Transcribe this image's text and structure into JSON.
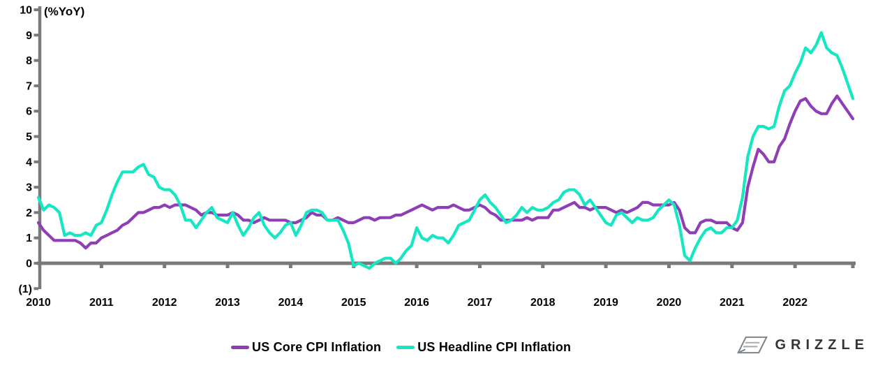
{
  "chart_data": {
    "type": "line",
    "title": "",
    "unit_label": "(%YoY)",
    "x_start": "2010-01",
    "x_end": "2022-12",
    "x_frequency": "monthly",
    "x_tick_labels": [
      "2010",
      "2011",
      "2012",
      "2013",
      "2014",
      "2015",
      "2016",
      "2017",
      "2018",
      "2019",
      "2020",
      "2021",
      "2022"
    ],
    "ylim": [
      -1,
      10
    ],
    "y_tick_values": [
      -1,
      0,
      1,
      2,
      3,
      4,
      5,
      6,
      7,
      8,
      9,
      10
    ],
    "y_tick_labels": [
      "(1)",
      "0",
      "1",
      "2",
      "3",
      "4",
      "5",
      "6",
      "7",
      "8",
      "9",
      "10"
    ],
    "grid": false,
    "legend_position": "bottom",
    "axis_color": "#7a7a7a",
    "series": [
      {
        "name": "US Core CPI Inflation",
        "color": "#8e3fb5",
        "values": [
          1.6,
          1.3,
          1.1,
          0.9,
          0.9,
          0.9,
          0.9,
          0.9,
          0.8,
          0.6,
          0.8,
          0.8,
          1.0,
          1.1,
          1.2,
          1.3,
          1.5,
          1.6,
          1.8,
          2.0,
          2.0,
          2.1,
          2.2,
          2.2,
          2.3,
          2.2,
          2.3,
          2.3,
          2.3,
          2.2,
          2.1,
          1.9,
          2.0,
          2.0,
          1.9,
          1.9,
          1.9,
          2.0,
          1.9,
          1.7,
          1.7,
          1.6,
          1.7,
          1.8,
          1.7,
          1.7,
          1.7,
          1.7,
          1.6,
          1.6,
          1.7,
          1.8,
          2.0,
          1.9,
          1.9,
          1.7,
          1.7,
          1.8,
          1.7,
          1.6,
          1.6,
          1.7,
          1.8,
          1.8,
          1.7,
          1.8,
          1.8,
          1.8,
          1.9,
          1.9,
          2.0,
          2.1,
          2.2,
          2.3,
          2.2,
          2.1,
          2.2,
          2.2,
          2.2,
          2.3,
          2.2,
          2.1,
          2.1,
          2.2,
          2.3,
          2.2,
          2.0,
          1.9,
          1.7,
          1.7,
          1.7,
          1.7,
          1.7,
          1.8,
          1.7,
          1.8,
          1.8,
          1.8,
          2.1,
          2.1,
          2.2,
          2.3,
          2.4,
          2.2,
          2.2,
          2.1,
          2.2,
          2.2,
          2.2,
          2.1,
          2.0,
          2.1,
          2.0,
          2.1,
          2.2,
          2.4,
          2.4,
          2.3,
          2.3,
          2.3,
          2.3,
          2.4,
          2.1,
          1.4,
          1.2,
          1.2,
          1.6,
          1.7,
          1.7,
          1.6,
          1.6,
          1.6,
          1.4,
          1.3,
          1.6,
          3.0,
          3.8,
          4.5,
          4.3,
          4.0,
          4.0,
          4.6,
          4.9,
          5.5,
          6.0,
          6.4,
          6.5,
          6.2,
          6.0,
          5.9,
          5.9,
          6.3,
          6.6,
          6.3,
          6.0,
          5.7
        ]
      },
      {
        "name": "US Headline CPI Inflation",
        "color": "#14e7c2",
        "values": [
          2.6,
          2.1,
          2.3,
          2.2,
          2.0,
          1.1,
          1.2,
          1.1,
          1.1,
          1.2,
          1.1,
          1.5,
          1.6,
          2.1,
          2.7,
          3.2,
          3.6,
          3.6,
          3.6,
          3.8,
          3.9,
          3.5,
          3.4,
          3.0,
          2.9,
          2.9,
          2.7,
          2.3,
          1.7,
          1.7,
          1.4,
          1.7,
          2.0,
          2.2,
          1.8,
          1.7,
          1.6,
          2.0,
          1.5,
          1.1,
          1.4,
          1.8,
          2.0,
          1.5,
          1.2,
          1.0,
          1.2,
          1.5,
          1.6,
          1.1,
          1.5,
          2.0,
          2.1,
          2.1,
          2.0,
          1.7,
          1.7,
          1.7,
          1.3,
          0.8,
          -0.1,
          0.0,
          -0.1,
          -0.2,
          0.0,
          0.1,
          0.2,
          0.2,
          0.0,
          0.2,
          0.5,
          0.7,
          1.4,
          1.0,
          0.9,
          1.1,
          1.0,
          1.0,
          0.8,
          1.1,
          1.5,
          1.6,
          1.7,
          2.1,
          2.5,
          2.7,
          2.4,
          2.2,
          1.9,
          1.6,
          1.7,
          1.9,
          2.2,
          2.0,
          2.2,
          2.1,
          2.1,
          2.2,
          2.4,
          2.5,
          2.8,
          2.9,
          2.9,
          2.7,
          2.3,
          2.5,
          2.2,
          1.9,
          1.6,
          1.5,
          1.9,
          2.0,
          1.8,
          1.6,
          1.8,
          1.7,
          1.7,
          1.8,
          2.1,
          2.3,
          2.5,
          2.3,
          1.5,
          0.3,
          0.1,
          0.6,
          1.0,
          1.3,
          1.4,
          1.2,
          1.2,
          1.4,
          1.4,
          1.7,
          2.6,
          4.2,
          5.0,
          5.4,
          5.4,
          5.3,
          5.4,
          6.2,
          6.8,
          7.0,
          7.5,
          7.9,
          8.5,
          8.3,
          8.6,
          9.1,
          8.5,
          8.3,
          8.2,
          7.7,
          7.1,
          6.5
        ]
      }
    ]
  },
  "branding": {
    "wordmark": "GRIZZLE"
  }
}
